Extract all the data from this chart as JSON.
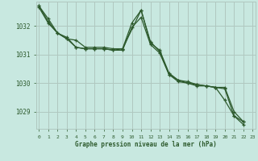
{
  "title": "Graphe pression niveau de la mer (hPa)",
  "background_color": "#c8e8e0",
  "plot_bg_color": "#c8e8e0",
  "grid_color": "#b0c8c0",
  "line_color": "#2d5a2d",
  "marker_color": "#2d5a2d",
  "ylim": [
    1028.4,
    1032.85
  ],
  "xlim": [
    -0.3,
    23.3
  ],
  "yticks": [
    1029,
    1030,
    1031,
    1032
  ],
  "xticks": [
    0,
    1,
    2,
    3,
    4,
    5,
    6,
    7,
    8,
    9,
    10,
    11,
    12,
    13,
    14,
    15,
    16,
    17,
    18,
    19,
    20,
    21,
    22,
    23
  ],
  "series": [
    {
      "x": [
        0,
        1,
        2,
        3,
        4,
        5,
        6,
        7,
        8,
        9,
        10,
        11,
        12,
        13,
        14,
        15,
        16,
        17,
        18,
        19,
        20,
        21,
        22
      ],
      "y": [
        1032.7,
        1032.25,
        1031.75,
        1031.6,
        1031.25,
        1031.2,
        1031.2,
        1031.2,
        1031.15,
        1031.2,
        1032.1,
        1032.55,
        1031.45,
        1031.1,
        1030.3,
        1030.1,
        1030.05,
        1029.95,
        1029.9,
        1029.85,
        1029.85,
        1029.0,
        1028.65
      ]
    },
    {
      "x": [
        0,
        1,
        2,
        3,
        4,
        5,
        6,
        7,
        8,
        9,
        10,
        11,
        12,
        13,
        14,
        15,
        16,
        17,
        18,
        19,
        20,
        21,
        22
      ],
      "y": [
        1032.65,
        1032.1,
        1031.75,
        1031.55,
        1031.25,
        1031.2,
        1031.2,
        1031.2,
        1031.15,
        1031.15,
        1031.95,
        1032.3,
        1031.35,
        1031.05,
        1030.3,
        1030.05,
        1030.0,
        1029.9,
        1029.9,
        1029.85,
        1029.8,
        1028.85,
        1028.55
      ]
    },
    {
      "x": [
        0,
        1,
        2,
        3,
        4,
        5,
        6,
        7,
        8,
        9,
        11,
        12,
        13,
        14,
        15,
        16,
        17,
        18,
        19,
        20,
        21,
        22
      ],
      "y": [
        1032.7,
        1032.15,
        1031.75,
        1031.55,
        1031.5,
        1031.25,
        1031.25,
        1031.25,
        1031.2,
        1031.2,
        1032.55,
        1031.4,
        1031.15,
        1030.35,
        1030.1,
        1030.0,
        1029.95,
        1029.9,
        1029.85,
        1029.4,
        1028.85,
        1028.65
      ]
    }
  ]
}
